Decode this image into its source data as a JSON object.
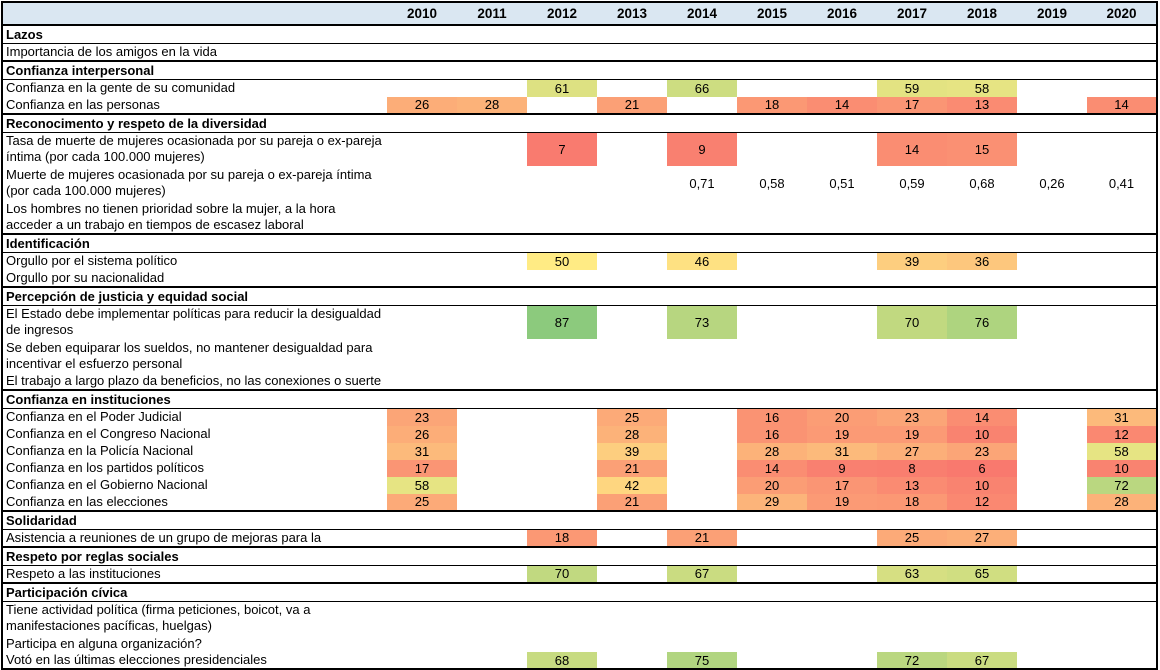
{
  "colors": {
    "header_bg": "#DAE7F2",
    "border": "#000000",
    "page_bg": "#FFFFFF"
  },
  "chart_data": {
    "type": "heatmap",
    "title": "",
    "columns": [
      "2010",
      "2011",
      "2012",
      "2013",
      "2014",
      "2015",
      "2016",
      "2017",
      "2018",
      "2019",
      "2020"
    ],
    "color_scale": {
      "min": 0,
      "mid": 50,
      "max": 100,
      "min_color": "#F8696B",
      "mid_color": "#FFEB84",
      "max_color": "#63BE7B"
    },
    "sections": [
      {
        "title": "Lazos",
        "rows": [
          {
            "label": "Importancia de los amigos en la vida",
            "lines": 1,
            "heat": false,
            "values": {}
          }
        ]
      },
      {
        "title": "Confianza interpersonal",
        "rows": [
          {
            "label": "Confianza en la gente de su comunidad",
            "lines": 1,
            "heat": true,
            "values": {
              "2012": "61",
              "2014": "66",
              "2017": "59",
              "2018": "58"
            }
          },
          {
            "label": "Confianza en las personas",
            "lines": 1,
            "heat": true,
            "values": {
              "2010": "26",
              "2011": "28",
              "2013": "21",
              "2015": "18",
              "2016": "14",
              "2017": "17",
              "2018": "13",
              "2020": "14"
            }
          }
        ]
      },
      {
        "title": "Reconocimento y respeto de la diversidad",
        "rows": [
          {
            "label": "Tasa de muerte de mujeres ocasionada por su pareja o ex-pareja íntima (por cada 100.000 mujeres)",
            "lines": 2,
            "heat": true,
            "values": {
              "2012": "7",
              "2014": "9",
              "2017": "14",
              "2018": "15"
            }
          },
          {
            "label": "Muerte de mujeres ocasionada por su pareja o ex-pareja íntima (por cada 100.000 mujeres)",
            "lines": 2,
            "heat": false,
            "values": {
              "2014": "0,71",
              "2015": "0,58",
              "2016": "0,51",
              "2017": "0,59",
              "2018": "0,68",
              "2019": "0,26",
              "2020": "0,41"
            }
          },
          {
            "label": "Los hombres no tienen prioridad sobre la mujer, a la hora acceder a un trabajo en tiempos de escasez laboral",
            "lines": 2,
            "heat": false,
            "values": {}
          }
        ]
      },
      {
        "title": "Identificación",
        "rows": [
          {
            "label": "Orgullo por el sistema político",
            "lines": 1,
            "heat": true,
            "values": {
              "2012": "50",
              "2014": "46",
              "2017": "39",
              "2018": "36"
            }
          },
          {
            "label": "Orgullo por su nacionalidad",
            "lines": 1,
            "heat": false,
            "values": {}
          }
        ]
      },
      {
        "title": "Percepción de justicia y equidad social",
        "rows": [
          {
            "label": "El Estado debe implementar políticas para reducir la desigualdad de ingresos",
            "lines": 2,
            "heat": true,
            "values": {
              "2012": "87",
              "2014": "73",
              "2017": "70",
              "2018": "76"
            }
          },
          {
            "label": "Se deben equiparar los sueldos, no mantener desigualdad para incentivar el esfuerzo personal",
            "lines": 2,
            "heat": false,
            "values": {}
          },
          {
            "label": "El trabajo a largo plazo da beneficios, no las conexiones o suerte",
            "lines": 1,
            "heat": false,
            "values": {}
          }
        ]
      },
      {
        "title": "Confianza en instituciones",
        "rows": [
          {
            "label": "Confianza en el Poder Judicial",
            "lines": 1,
            "heat": true,
            "values": {
              "2010": "23",
              "2013": "25",
              "2015": "16",
              "2016": "20",
              "2017": "23",
              "2018": "14",
              "2020": "31"
            }
          },
          {
            "label": "Confianza en el Congreso Nacional",
            "lines": 1,
            "heat": true,
            "values": {
              "2010": "26",
              "2013": "28",
              "2015": "16",
              "2016": "19",
              "2017": "19",
              "2018": "10",
              "2020": "12"
            }
          },
          {
            "label": "Confianza en la Policía Nacional",
            "lines": 1,
            "heat": true,
            "values": {
              "2010": "31",
              "2013": "39",
              "2015": "28",
              "2016": "31",
              "2017": "27",
              "2018": "23",
              "2020": "58"
            }
          },
          {
            "label": "Confianza en los partidos políticos",
            "lines": 1,
            "heat": true,
            "values": {
              "2010": "17",
              "2013": "21",
              "2015": "14",
              "2016": "9",
              "2017": "8",
              "2018": "6",
              "2020": "10"
            }
          },
          {
            "label": "Confianza en el Gobierno Nacional",
            "lines": 1,
            "heat": true,
            "values": {
              "2010": "58",
              "2013": "42",
              "2015": "20",
              "2016": "17",
              "2017": "13",
              "2018": "10",
              "2020": "72"
            }
          },
          {
            "label": "Confianza en las elecciones",
            "lines": 1,
            "heat": true,
            "values": {
              "2010": "25",
              "2013": "21",
              "2015": "29",
              "2016": "19",
              "2017": "18",
              "2018": "12",
              "2020": "28"
            }
          }
        ]
      },
      {
        "title": "Solidaridad",
        "rows": [
          {
            "label": "Asistencia a reuniones de un grupo de mejoras para la",
            "lines": 1,
            "heat": true,
            "values": {
              "2012": "18",
              "2014": "21",
              "2017": "25",
              "2018": "27"
            }
          }
        ]
      },
      {
        "title": "Respeto por reglas sociales",
        "rows": [
          {
            "label": "Respeto a las instituciones",
            "lines": 1,
            "heat": true,
            "values": {
              "2012": "70",
              "2014": "67",
              "2017": "63",
              "2018": "65"
            }
          }
        ]
      },
      {
        "title": "Participación cívica",
        "rows": [
          {
            "label": "Tiene actividad política (firma peticiones, boicot, va a manifestaciones pacíficas, huelgas)",
            "lines": 2,
            "heat": false,
            "values": {}
          },
          {
            "label": "Participa en alguna organización?",
            "lines": 1,
            "heat": false,
            "values": {}
          },
          {
            "label": "Votó en las últimas elecciones presidenciales",
            "lines": 1,
            "heat": true,
            "values": {
              "2012": "68",
              "2014": "75",
              "2017": "72",
              "2018": "67"
            }
          }
        ]
      }
    ]
  }
}
